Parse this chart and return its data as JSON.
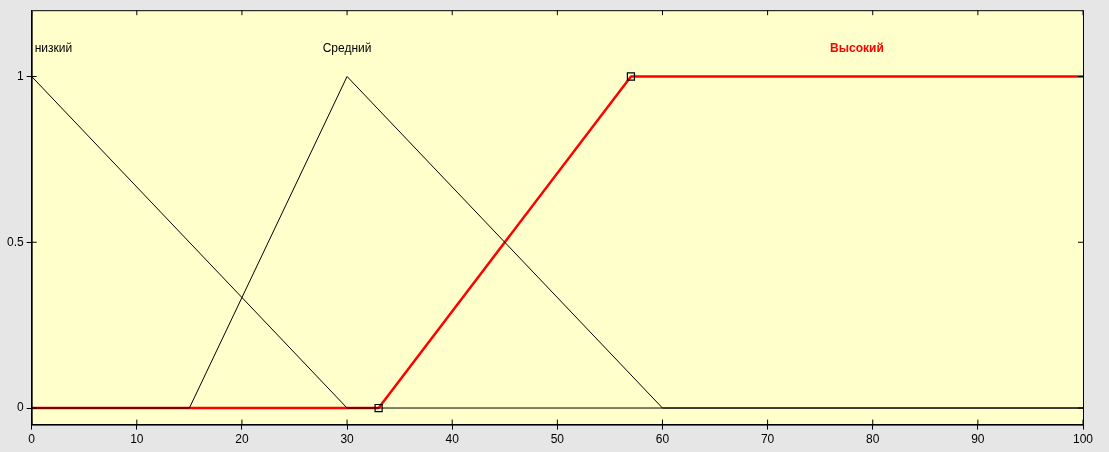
{
  "chart_data": {
    "type": "line",
    "xlim": [
      0,
      100
    ],
    "xticks": [
      0,
      10,
      20,
      30,
      40,
      50,
      60,
      70,
      80,
      90,
      100
    ],
    "ylim": [
      -0.05,
      1.2
    ],
    "yticks": [
      0,
      0.5,
      1
    ],
    "grid": false,
    "legend": false,
    "marker": "none",
    "series": [
      {
        "name": "низкий",
        "color": "#000000",
        "x": [
          0,
          30,
          100
        ],
        "values": [
          1,
          0,
          0
        ]
      },
      {
        "name": "Средний",
        "color": "#000000",
        "x": [
          0,
          15,
          30,
          60,
          100
        ],
        "values": [
          0,
          0,
          1,
          0,
          0
        ]
      },
      {
        "name": "Высокий",
        "color": "#ff0000",
        "x": [
          0,
          33,
          57,
          100
        ],
        "values": [
          0,
          0,
          1,
          1
        ]
      },
      {
        "type": "scatter",
        "color": "#000000",
        "marker": "square",
        "x": [
          33,
          57
        ],
        "values": [
          0,
          1
        ]
      }
    ]
  }
}
